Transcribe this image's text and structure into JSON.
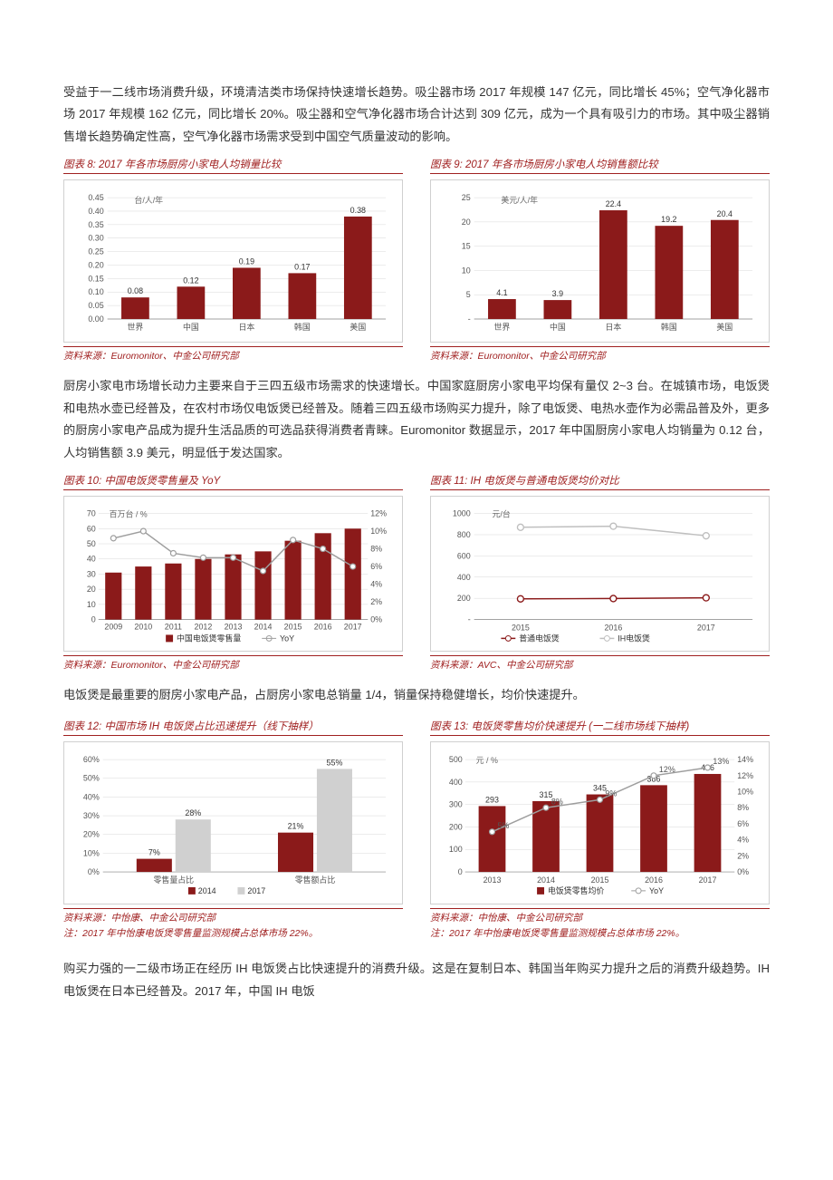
{
  "colors": {
    "dark_red": "#8b1a1a",
    "light_gray": "#bfbfbf",
    "gray_line": "#9e9e9e",
    "title_red": "#a02020"
  },
  "para1": "受益于一二线市场消费升级，环境清洁类市场保持快速增长趋势。吸尘器市场 2017 年规模 147 亿元，同比增长 45%；空气净化器市场 2017 年规模 162 亿元，同比增长 20%。吸尘器和空气净化器市场合计达到 309 亿元，成为一个具有吸引力的市场。其中吸尘器销售增长趋势确定性高，空气净化器市场需求受到中国空气质量波动的影响。",
  "chart8": {
    "title": "图表 8: 2017 年各市场厨房小家电人均销量比较",
    "unit": "台/人/年",
    "categories": [
      "世界",
      "中国",
      "日本",
      "韩国",
      "美国"
    ],
    "values": [
      0.08,
      0.12,
      0.19,
      0.17,
      0.38
    ],
    "ylim": [
      0,
      0.45
    ],
    "ytick_step": 0.05,
    "bar_color": "#8b1a1a",
    "bg": "#ffffff"
  },
  "chart9": {
    "title": "图表 9: 2017 年各市场厨房小家电人均销售额比较",
    "unit": "美元/人/年",
    "categories": [
      "世界",
      "中国",
      "日本",
      "韩国",
      "美国"
    ],
    "values": [
      4.1,
      3.9,
      22.4,
      19.2,
      20.4
    ],
    "ylim": [
      0,
      25
    ],
    "ytick_step": 5,
    "bar_color": "#8b1a1a",
    "bg": "#ffffff"
  },
  "source89": "资料来源：Euromonitor、中金公司研究部",
  "para2": "厨房小家电市场增长动力主要来自于三四五级市场需求的快速增长。中国家庭厨房小家电平均保有量仅 2~3 台。在城镇市场，电饭煲和电热水壶已经普及，在农村市场仅电饭煲已经普及。随着三四五级市场购买力提升，除了电饭煲、电热水壶作为必需品普及外，更多的厨房小家电产品成为提升生活品质的可选品获得消费者青睐。Euromonitor 数据显示，2017 年中国厨房小家电人均销量为 0.12 台，人均销售额 3.9 美元，明显低于发达国家。",
  "chart10": {
    "title": "图表 10:  中国电饭煲零售量及 YoY",
    "unit": "百万台 / %",
    "years": [
      "2009",
      "2010",
      "2011",
      "2012",
      "2013",
      "2014",
      "2015",
      "2016",
      "2017"
    ],
    "bars": [
      31,
      35,
      37,
      40,
      43,
      45,
      52,
      57,
      60
    ],
    "line_pct": [
      9.2,
      10,
      7.5,
      7,
      7,
      5.5,
      9,
      8,
      6
    ],
    "y1_lim": [
      0,
      70
    ],
    "y1_step": 10,
    "y2_lim": [
      0,
      12
    ],
    "y2_step": 2,
    "bar_color": "#8b1a1a",
    "line_color": "#9e9e9e",
    "legend": [
      "中国电饭煲零售量",
      "YoY"
    ]
  },
  "chart11": {
    "title": "图表 11: IH 电饭煲与普通电饭煲均价对比",
    "unit": "元/台",
    "years": [
      "2015",
      "2016",
      "2017"
    ],
    "series": [
      {
        "name": "普通电饭煲",
        "values": [
          195,
          198,
          205
        ],
        "color": "#8b1a1a"
      },
      {
        "name": "IH电饭煲",
        "values": [
          870,
          880,
          790
        ],
        "color": "#bfbfbf"
      }
    ],
    "ylim": [
      0,
      1000
    ],
    "ytick_step": 200
  },
  "source10": "资料来源：Euromonitor、中金公司研究部",
  "source11": "资料来源：AVC、中金公司研究部",
  "para3": "电饭煲是最重要的厨房小家电产品，占厨房小家电总销量 1/4，销量保持稳健增长，均价快速提升。",
  "chart12": {
    "title": "图表 12:  中国市场 IH 电饭煲占比迅速提升（线下抽样）",
    "categories": [
      "零售量占比",
      "零售额占比"
    ],
    "series": [
      {
        "name": "2014",
        "values": [
          7,
          21
        ],
        "color": "#8b1a1a"
      },
      {
        "name": "2017",
        "values": [
          28,
          55
        ],
        "color": "#d0d0d0"
      }
    ],
    "ylim": [
      0,
      60
    ],
    "ytick_step": 10
  },
  "chart13": {
    "title": "图表 13:  电饭煲零售均价快速提升 (一二线市场线下抽样)",
    "unit": "元 / %",
    "years": [
      "2013",
      "2014",
      "2015",
      "2016",
      "2017"
    ],
    "bars": [
      293,
      315,
      345,
      386,
      436
    ],
    "line_pct": [
      5,
      8,
      9,
      12,
      13
    ],
    "y1_lim": [
      0,
      500
    ],
    "y1_step": 100,
    "y2_lim": [
      0,
      14
    ],
    "y2_step": 2,
    "bar_color": "#8b1a1a",
    "line_color": "#9e9e9e",
    "legend": [
      "电饭煲零售均价",
      "YoY"
    ]
  },
  "source12": "资料来源：中怡康、中金公司研究部",
  "note12": "注：2017 年中怡康电饭煲零售量监测规模占总体市场 22%。",
  "source13": "资料来源：中怡康、中金公司研究部",
  "note13": "注：2017 年中怡康电饭煲零售量监测规模占总体市场 22%。",
  "para4": "购买力强的一二级市场正在经历 IH 电饭煲占比快速提升的消费升级。这是在复制日本、韩国当年购买力提升之后的消费升级趋势。IH 电饭煲在日本已经普及。2017 年，中国 IH 电饭"
}
